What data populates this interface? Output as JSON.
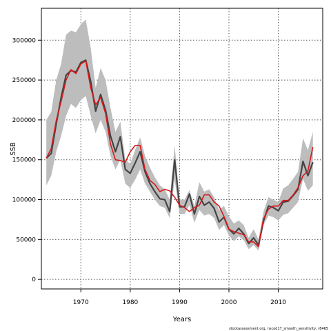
{
  "chart_data": {
    "type": "line",
    "title": "",
    "xlabel": "Years",
    "ylabel": "SSB",
    "xlim": [
      1962,
      2019
    ],
    "ylim": [
      -12000,
      340000
    ],
    "grid": true,
    "legend": "none",
    "xticks": [
      1970,
      1980,
      1990,
      2000,
      2010
    ],
    "yticks": [
      0,
      50000,
      100000,
      150000,
      200000,
      250000,
      300000
    ],
    "xtick_labels": [
      "1970",
      "1980",
      "1990",
      "2000",
      "2010"
    ],
    "ytick_labels": [
      "0",
      "50000",
      "100000",
      "150000",
      "200000",
      "250000",
      "300000"
    ],
    "x": [
      1963,
      1964,
      1965,
      1966,
      1967,
      1968,
      1969,
      1970,
      1971,
      1972,
      1973,
      1974,
      1975,
      1976,
      1977,
      1978,
      1979,
      1980,
      1981,
      1982,
      1983,
      1984,
      1985,
      1986,
      1987,
      1988,
      1989,
      1990,
      1991,
      1992,
      1993,
      1994,
      1995,
      1996,
      1997,
      1998,
      1999,
      2000,
      2001,
      2002,
      2003,
      2004,
      2005,
      2006,
      2007,
      2008,
      2009,
      2010,
      2011,
      2012,
      2013,
      2014,
      2015,
      2016,
      2017
    ],
    "band": {
      "color": "#bdbdbd",
      "upper": [
        200000,
        210000,
        250000,
        270000,
        307000,
        312000,
        310000,
        320000,
        326000,
        290000,
        240000,
        265000,
        250000,
        215000,
        185000,
        198000,
        150000,
        145000,
        162000,
        178000,
        155000,
        140000,
        128000,
        118000,
        113000,
        100000,
        168000,
        100000,
        100000,
        112000,
        92000,
        122000,
        110000,
        113000,
        103000,
        87000,
        92000,
        79000,
        70000,
        74000,
        68000,
        52000,
        63000,
        50000,
        85000,
        103000,
        100000,
        97000,
        114000,
        118000,
        126000,
        135000,
        177000,
        162000,
        185000
      ],
      "lower": [
        118000,
        130000,
        160000,
        180000,
        205000,
        220000,
        215000,
        225000,
        230000,
        205000,
        183000,
        200000,
        185000,
        155000,
        138000,
        150000,
        120000,
        115000,
        125000,
        138000,
        120000,
        110000,
        100000,
        92000,
        90000,
        77000,
        125000,
        82000,
        82000,
        93000,
        71000,
        87000,
        80000,
        82000,
        77000,
        62000,
        68000,
        55000,
        48000,
        54000,
        49000,
        38000,
        43000,
        36000,
        68000,
        80000,
        78000,
        74000,
        81000,
        83000,
        90000,
        97000,
        126000,
        111000,
        118000
      ]
    },
    "series": [
      {
        "color": "#444444",
        "values": [
          152000,
          158000,
          195000,
          228000,
          256000,
          262000,
          260000,
          272000,
          275000,
          248000,
          211000,
          232000,
          212000,
          180000,
          160000,
          179000,
          138000,
          133000,
          146000,
          160000,
          135000,
          120000,
          110000,
          101000,
          100000,
          85000,
          150000,
          91000,
          91000,
          107000,
          82000,
          104000,
          93000,
          97000,
          89000,
          72000,
          78000,
          63000,
          57000,
          64000,
          57000,
          45000,
          52000,
          43000,
          73000,
          92000,
          90000,
          86000,
          97000,
          98000,
          105000,
          113000,
          148000,
          130000,
          147000
        ]
      },
      {
        "color": "#d7191c",
        "values": [
          152000,
          164000,
          199000,
          223000,
          250000,
          263000,
          258000,
          270000,
          274000,
          240000,
          219000,
          228000,
          208000,
          170000,
          150000,
          149000,
          147000,
          160000,
          168000,
          168000,
          138000,
          124000,
          119000,
          110000,
          113000,
          111000,
          103000,
          93000,
          90000,
          85000,
          90000,
          93000,
          106000,
          106000,
          97000,
          92000,
          79000,
          63000,
          60000,
          58000,
          56000,
          47000,
          47000,
          41000,
          76000,
          88000,
          92000,
          92000,
          99000,
          99000,
          106000,
          115000,
          130000,
          136000,
          166000
        ]
      }
    ]
  },
  "source_note": "stockassessment.org, nscod17_smooth_sensitivity, r8465"
}
